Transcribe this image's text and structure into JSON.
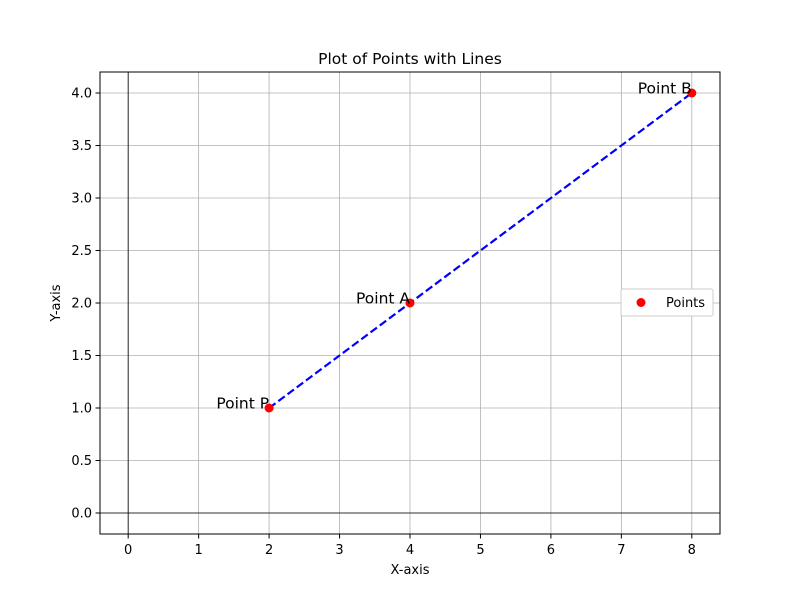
{
  "chart_data": {
    "type": "scatter",
    "title": "Plot of Points with Lines",
    "xlabel": "X-axis",
    "ylabel": "Y-axis",
    "xlim": [
      -0.4,
      8.4
    ],
    "ylim": [
      -0.2,
      4.2
    ],
    "xticks": [
      0,
      1,
      2,
      3,
      4,
      5,
      6,
      7,
      8
    ],
    "yticks": [
      0.0,
      0.5,
      1.0,
      1.5,
      2.0,
      2.5,
      3.0,
      3.5,
      4.0
    ],
    "ytick_labels": [
      "0.0",
      "0.5",
      "1.0",
      "1.5",
      "2.0",
      "2.5",
      "3.0",
      "3.5",
      "4.0"
    ],
    "grid": true,
    "legend_position": "center-right",
    "series": [
      {
        "name": "Points",
        "kind": "scatter",
        "color": "#ff0000",
        "points": [
          {
            "x": 2,
            "y": 1,
            "label": "Point P"
          },
          {
            "x": 4,
            "y": 2,
            "label": "Point A"
          },
          {
            "x": 8,
            "y": 4,
            "label": "Point B"
          }
        ]
      },
      {
        "kind": "line",
        "style": "dashed",
        "color": "#0000ff",
        "x": [
          2,
          4,
          8
        ],
        "y": [
          1,
          2,
          4
        ]
      }
    ]
  }
}
